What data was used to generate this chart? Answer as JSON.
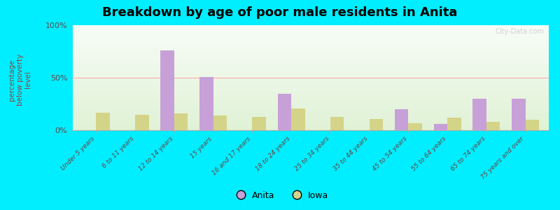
{
  "title": "Breakdown by age of poor male residents in Anita",
  "ylabel": "percentage\nbelow poverty\nlevel",
  "categories": [
    "Under 5 years",
    "6 to 11 years",
    "12 to 14 years",
    "15 years",
    "16 and 17 years",
    "18 to 24 years",
    "25 to 34 years",
    "35 to 44 years",
    "45 to 54 years",
    "55 to 64 years",
    "65 to 74 years",
    "75 years and over"
  ],
  "anita_values": [
    0,
    0,
    76,
    51,
    0,
    35,
    0,
    0,
    20,
    6,
    30,
    30
  ],
  "iowa_values": [
    17,
    15,
    16,
    14,
    13,
    21,
    13,
    11,
    7,
    12,
    8,
    10
  ],
  "anita_color": "#c8a0d8",
  "iowa_color": "#d4d488",
  "bg_color": "#00eeff",
  "ylim": [
    0,
    100
  ],
  "yticks": [
    0,
    50,
    100
  ],
  "ytick_labels": [
    "0%",
    "50%",
    "100%"
  ],
  "bar_width": 0.35,
  "title_fontsize": 13,
  "axis_label_color": "#884444",
  "tick_label_color": "#664444",
  "legend_labels": [
    "Anita",
    "Iowa"
  ],
  "watermark": "City-Data.com"
}
